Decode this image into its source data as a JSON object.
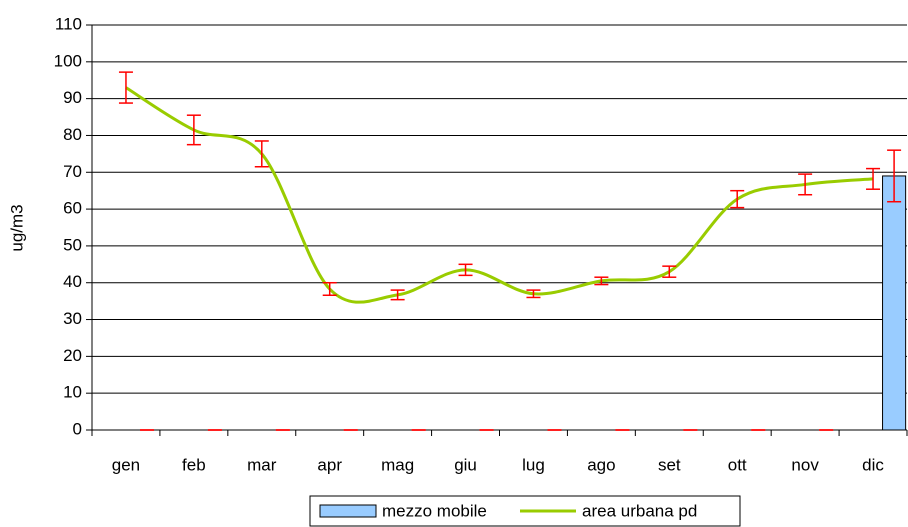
{
  "chart_data": {
    "type": "bar+line",
    "y_label": "ug/m3",
    "categories": [
      "gen",
      "feb",
      "mar",
      "apr",
      "mag",
      "giu",
      "lug",
      "ago",
      "set",
      "ott",
      "nov",
      "dic"
    ],
    "series": [
      {
        "name": "mezzo mobile",
        "type": "bar",
        "color": "#99ccff",
        "error_color": "#ff0000",
        "values": [
          0,
          0,
          0,
          0,
          0,
          0,
          0,
          0,
          0,
          0,
          0,
          69
        ],
        "errors": [
          0,
          0,
          0,
          0,
          0,
          0,
          0,
          0,
          0,
          0,
          0,
          7
        ]
      },
      {
        "name": "area urbana pd",
        "type": "line",
        "color": "#99cc00",
        "error_color": "#ff0000",
        "values": [
          93,
          81.5,
          75,
          38.3,
          36.7,
          43.5,
          37,
          40.5,
          43,
          62.7,
          66.7,
          68.2
        ],
        "errors": [
          4.2,
          4,
          3.5,
          1.7,
          1.3,
          1.5,
          1,
          1,
          1.5,
          2.3,
          2.8,
          2.8
        ]
      }
    ],
    "ylim": [
      0,
      110
    ],
    "yticks": [
      0,
      10,
      20,
      30,
      40,
      50,
      60,
      70,
      80,
      90,
      100,
      110
    ],
    "grid": true,
    "legend": "bottom"
  }
}
